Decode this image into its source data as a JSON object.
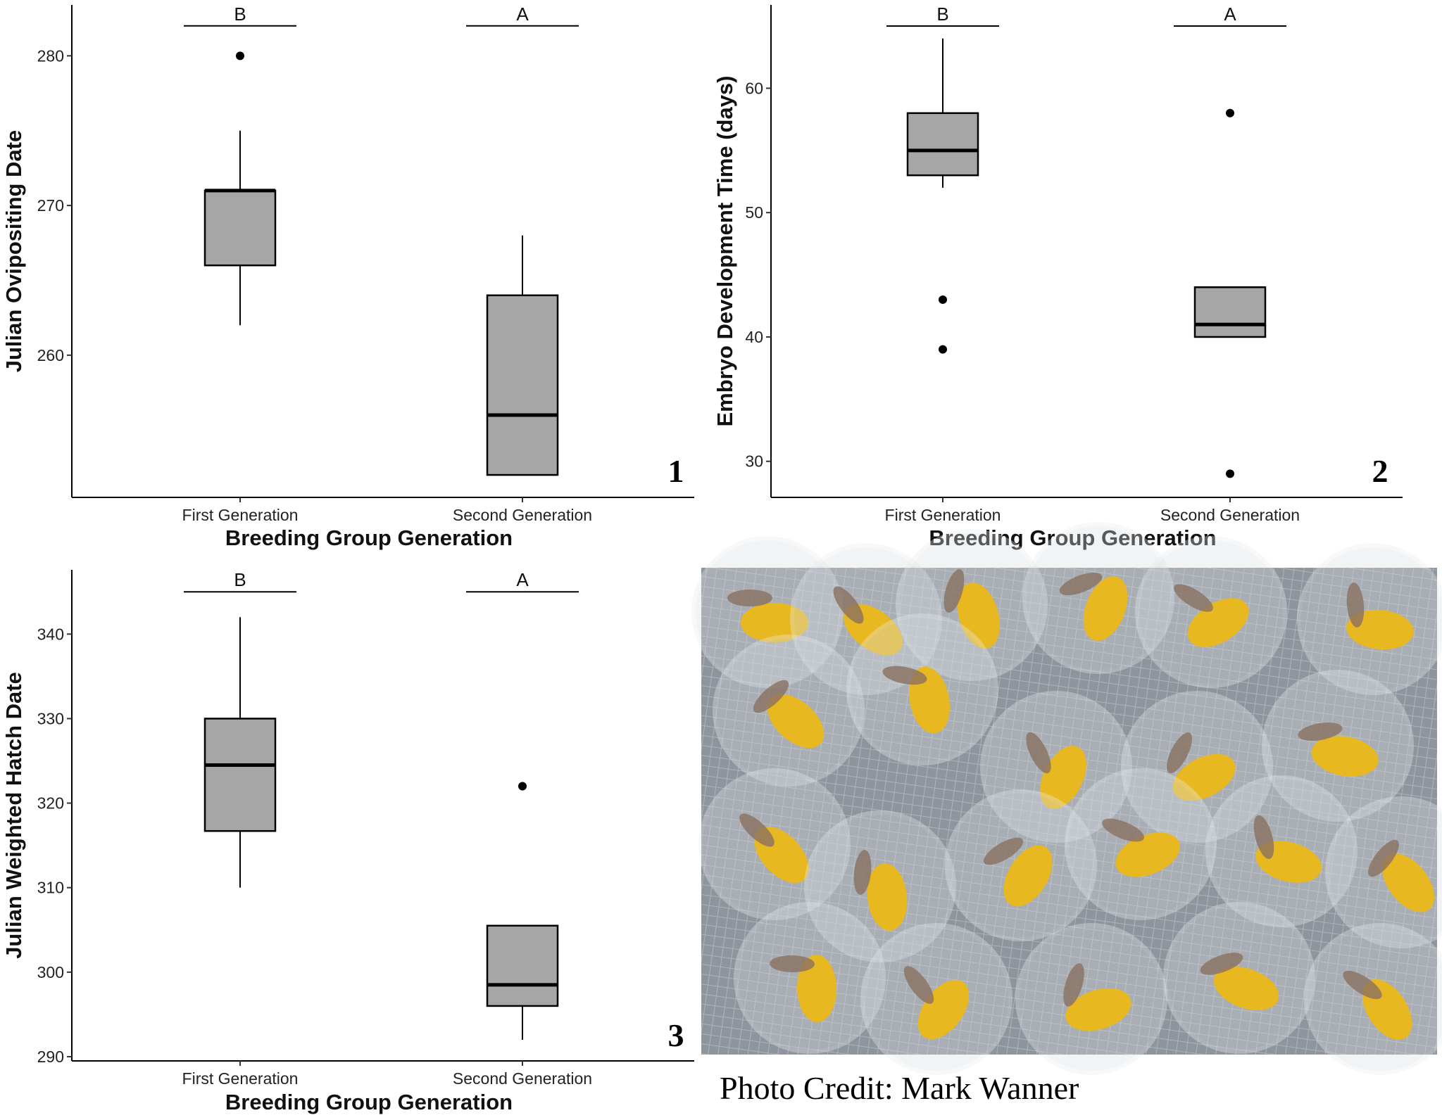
{
  "chart_data": [
    {
      "type": "box",
      "panel_label": "1",
      "xlabel": "Breeding Group Generation",
      "ylabel": "Julian Ovipositing Date",
      "categories": [
        "First Generation",
        "Second Generation"
      ],
      "yticks": [
        260,
        270,
        280
      ],
      "ylim": [
        250.5,
        283.4
      ],
      "grid": false,
      "significance": {
        "labels": [
          "B",
          "A"
        ],
        "bar_value": 282
      },
      "boxes": [
        {
          "q1": 266,
          "median": 271,
          "q3": 271,
          "whisker_low": 262,
          "whisker_high": 275,
          "outliers": [
            280
          ]
        },
        {
          "q1": 252,
          "median": 256,
          "q3": 264,
          "whisker_low": 252,
          "whisker_high": 268,
          "outliers": []
        }
      ]
    },
    {
      "type": "box",
      "panel_label": "2",
      "xlabel": "Breeding Group Generation",
      "ylabel": "Embryo Development Time (days)",
      "categories": [
        "First Generation",
        "Second Generation"
      ],
      "yticks": [
        30,
        40,
        50,
        60
      ],
      "ylim": [
        27.1,
        66.7
      ],
      "grid": false,
      "significance": {
        "labels": [
          "B",
          "A"
        ],
        "bar_value": 65
      },
      "boxes": [
        {
          "q1": 53,
          "median": 55,
          "q3": 58,
          "whisker_low": 52,
          "whisker_high": 64,
          "outliers": [
            43,
            39
          ]
        },
        {
          "q1": 40,
          "median": 41,
          "q3": 44,
          "whisker_low": 40,
          "whisker_high": 44,
          "outliers": [
            58,
            29
          ]
        }
      ]
    },
    {
      "type": "box",
      "panel_label": "3",
      "xlabel": "Breeding Group Generation",
      "ylabel": "Julian Weighted Hatch Date",
      "categories": [
        "First Generation",
        "Second Generation"
      ],
      "yticks": [
        290,
        300,
        310,
        320,
        330,
        340
      ],
      "ylim": [
        289.5,
        347.6
      ],
      "grid": false,
      "significance": {
        "labels": [
          "B",
          "A"
        ],
        "bar_value": 345
      },
      "boxes": [
        {
          "q1": 316.7,
          "median": 324.5,
          "q3": 330,
          "whisker_low": 310,
          "whisker_high": 342,
          "outliers": []
        },
        {
          "q1": 296,
          "median": 298.5,
          "q3": 305.5,
          "whisker_low": 292,
          "whisker_high": 305.5,
          "outliers": [
            322
          ]
        }
      ]
    }
  ],
  "colors": {
    "box_fill": "#a6a6a6",
    "line": "#000000",
    "photo_bg": "#8e959c",
    "yolk": "#e8b820"
  },
  "photo": {
    "credit": "Photo Credit: Mark Wanner",
    "subject": "embryos-in-eggs-photo"
  }
}
